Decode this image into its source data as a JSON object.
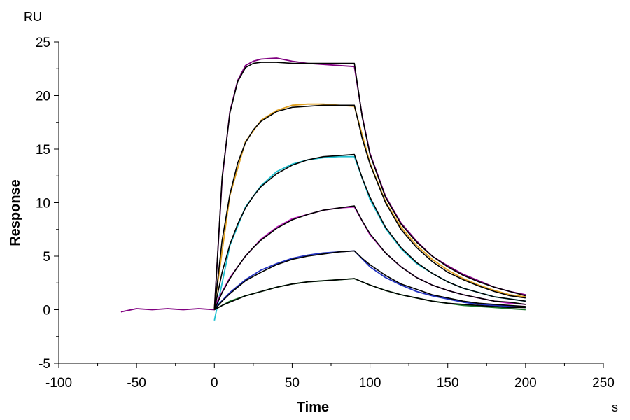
{
  "chart_data": {
    "type": "line",
    "xlabel": "Time",
    "ylabel": "Response",
    "x_unit": "s",
    "y_unit": "RU",
    "xlim": [
      -100,
      250
    ],
    "ylim": [
      -5,
      25
    ],
    "x_ticks": [
      -100,
      -50,
      0,
      50,
      100,
      150,
      200,
      250
    ],
    "y_ticks": [
      -5,
      0,
      5,
      10,
      15,
      20,
      25
    ],
    "grid": false,
    "series": [
      {
        "kind": "fit",
        "color": "#000000",
        "x": [
          0,
          5,
          10,
          15,
          20,
          25,
          30,
          40,
          50,
          60,
          70,
          80,
          90,
          95,
          100,
          110,
          120,
          130,
          140,
          150,
          160,
          170,
          180,
          190,
          200
        ],
        "y": [
          0,
          12.4,
          18.4,
          21.3,
          22.6,
          23.0,
          23.1,
          23.1,
          23.0,
          23.0,
          23.0,
          23.0,
          23.0,
          18.0,
          14.5,
          10.5,
          8.0,
          6.3,
          5.0,
          4.0,
          3.2,
          2.6,
          2.1,
          1.7,
          1.3
        ]
      },
      {
        "kind": "data",
        "color": "#800080",
        "x": [
          -60,
          -50,
          -40,
          -30,
          -20,
          -10,
          0,
          5,
          10,
          15,
          20,
          25,
          30,
          40,
          50,
          60,
          70,
          80,
          90,
          95,
          100,
          110,
          120,
          130,
          140,
          150,
          160,
          170,
          180,
          190,
          200
        ],
        "y": [
          -0.2,
          0.1,
          0.0,
          0.1,
          0.0,
          0.1,
          0.0,
          12.2,
          18.5,
          21.4,
          22.8,
          23.2,
          23.4,
          23.5,
          23.2,
          23.0,
          22.9,
          22.8,
          22.7,
          18.1,
          14.6,
          10.6,
          8.1,
          6.4,
          5.0,
          4.1,
          3.3,
          2.7,
          2.1,
          1.7,
          1.4
        ]
      },
      {
        "kind": "fit",
        "color": "#000000",
        "x": [
          0,
          5,
          10,
          15,
          20,
          25,
          30,
          40,
          50,
          60,
          70,
          80,
          90,
          95,
          100,
          110,
          120,
          130,
          140,
          150,
          160,
          170,
          180,
          190,
          200
        ],
        "y": [
          0,
          6.5,
          10.8,
          13.7,
          15.6,
          16.8,
          17.6,
          18.5,
          18.9,
          19.0,
          19.1,
          19.1,
          19.1,
          16.0,
          13.6,
          10.0,
          7.5,
          5.8,
          4.5,
          3.5,
          2.8,
          2.2,
          1.7,
          1.3,
          1.1
        ]
      },
      {
        "kind": "data",
        "color": "#e0a020",
        "x": [
          0,
          10,
          20,
          30,
          40,
          50,
          60,
          70,
          80,
          90,
          100,
          110,
          120,
          130,
          140,
          150,
          160,
          170,
          180,
          190,
          200
        ],
        "y": [
          0.2,
          10.7,
          15.7,
          17.7,
          18.6,
          19.1,
          19.2,
          19.2,
          19.1,
          19.0,
          13.7,
          10.1,
          7.7,
          6.0,
          4.7,
          3.7,
          2.9,
          2.3,
          1.8,
          1.4,
          1.2
        ]
      },
      {
        "kind": "fit",
        "color": "#000000",
        "x": [
          0,
          5,
          10,
          15,
          20,
          25,
          30,
          40,
          50,
          60,
          70,
          80,
          90,
          95,
          100,
          110,
          120,
          130,
          140,
          150,
          160,
          170,
          180,
          190,
          200
        ],
        "y": [
          0,
          3.5,
          6.1,
          8.0,
          9.5,
          10.6,
          11.5,
          12.7,
          13.5,
          14.0,
          14.3,
          14.4,
          14.5,
          12.3,
          10.5,
          7.7,
          5.8,
          4.4,
          3.4,
          2.6,
          2.0,
          1.6,
          1.2,
          1.0,
          0.8
        ]
      },
      {
        "kind": "data",
        "color": "#20c0d0",
        "x": [
          0,
          10,
          20,
          30,
          40,
          50,
          60,
          70,
          80,
          90,
          100,
          110,
          120,
          130,
          140,
          150,
          160,
          170,
          180,
          190,
          200
        ],
        "y": [
          -1.0,
          6.0,
          9.6,
          11.6,
          12.9,
          13.6,
          14.0,
          14.2,
          14.3,
          14.3,
          10.3,
          7.6,
          5.7,
          4.3,
          3.4,
          2.6,
          2.0,
          1.6,
          1.2,
          1.0,
          0.8
        ]
      },
      {
        "kind": "fit",
        "color": "#000000",
        "x": [
          0,
          5,
          10,
          15,
          20,
          25,
          30,
          40,
          50,
          60,
          70,
          80,
          90,
          95,
          100,
          110,
          120,
          130,
          140,
          150,
          160,
          170,
          180,
          190,
          200
        ],
        "y": [
          0,
          1.6,
          2.9,
          4.0,
          5.0,
          5.8,
          6.5,
          7.6,
          8.4,
          8.9,
          9.3,
          9.5,
          9.7,
          8.3,
          7.1,
          5.3,
          4.0,
          3.0,
          2.3,
          1.8,
          1.4,
          1.1,
          0.8,
          0.7,
          0.5
        ]
      },
      {
        "kind": "data",
        "color": "#c020c0",
        "x": [
          0,
          10,
          20,
          30,
          40,
          50,
          60,
          70,
          80,
          90,
          100,
          110,
          120,
          130,
          140,
          150,
          160,
          170,
          180,
          190,
          200
        ],
        "y": [
          0.3,
          3.0,
          5.0,
          6.6,
          7.7,
          8.5,
          8.9,
          9.3,
          9.5,
          9.6,
          7.0,
          5.3,
          4.0,
          3.0,
          2.3,
          1.8,
          1.4,
          1.1,
          0.8,
          0.6,
          0.5
        ]
      },
      {
        "kind": "fit",
        "color": "#000000",
        "x": [
          0,
          5,
          10,
          15,
          20,
          25,
          30,
          40,
          50,
          60,
          70,
          80,
          90,
          95,
          100,
          110,
          120,
          130,
          140,
          150,
          160,
          170,
          180,
          190,
          200
        ],
        "y": [
          0,
          0.8,
          1.5,
          2.1,
          2.7,
          3.1,
          3.5,
          4.2,
          4.7,
          5.0,
          5.2,
          5.4,
          5.5,
          4.8,
          4.2,
          3.2,
          2.4,
          1.9,
          1.4,
          1.1,
          0.8,
          0.6,
          0.5,
          0.4,
          0.3
        ]
      },
      {
        "kind": "data",
        "color": "#2030c0",
        "x": [
          0,
          10,
          20,
          30,
          40,
          50,
          60,
          70,
          80,
          90,
          100,
          110,
          120,
          130,
          140,
          150,
          160,
          170,
          180,
          190,
          200
        ],
        "y": [
          0.1,
          1.6,
          2.8,
          3.7,
          4.3,
          4.8,
          5.1,
          5.3,
          5.4,
          5.5,
          4.0,
          3.0,
          2.3,
          1.7,
          1.3,
          1.0,
          0.7,
          0.5,
          0.4,
          0.3,
          0.2
        ]
      },
      {
        "kind": "fit",
        "color": "#000000",
        "x": [
          0,
          5,
          10,
          15,
          20,
          25,
          30,
          40,
          50,
          60,
          70,
          80,
          90,
          95,
          100,
          110,
          120,
          130,
          140,
          150,
          160,
          170,
          180,
          190,
          200
        ],
        "y": [
          0,
          0.4,
          0.7,
          1.0,
          1.3,
          1.5,
          1.7,
          2.1,
          2.4,
          2.6,
          2.7,
          2.8,
          2.9,
          2.6,
          2.3,
          1.8,
          1.4,
          1.1,
          0.8,
          0.6,
          0.5,
          0.4,
          0.3,
          0.2,
          0.2
        ]
      },
      {
        "kind": "data",
        "color": "#1a7a2a",
        "x": [
          0,
          10,
          20,
          30,
          40,
          50,
          60,
          70,
          80,
          90,
          100,
          110,
          120,
          130,
          140,
          150,
          160,
          170,
          180,
          190,
          200
        ],
        "y": [
          0.0,
          0.8,
          1.3,
          1.7,
          2.1,
          2.4,
          2.6,
          2.7,
          2.8,
          2.9,
          2.3,
          1.8,
          1.4,
          1.1,
          0.8,
          0.6,
          0.4,
          0.3,
          0.2,
          0.1,
          0.0
        ]
      }
    ]
  }
}
